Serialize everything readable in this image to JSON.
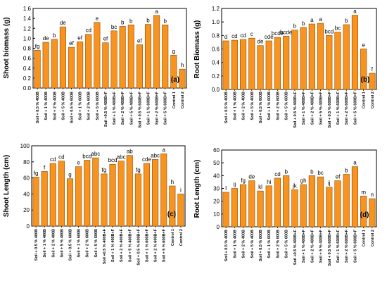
{
  "bar_color": "#f7931e",
  "bar_stroke": "#8a4b00",
  "chart_data": [
    {
      "panel_label": "(a)",
      "type": "bar",
      "ylabel": "Shoot biomass (g)",
      "ylim": [
        0,
        1.6
      ],
      "yticks": [
        "0.0",
        "0.2",
        "0.4",
        "0.6",
        "0.8",
        "1.0",
        "1.2",
        "1.4",
        "1.6"
      ],
      "categories": [
        "Soil + 0.5 % 400B",
        "Soil + 1 % 400B",
        "Soil + 2 % 400B",
        "Soil + 5 % 400B",
        "Soil + 0.5 % 600B",
        "Soil + 1 % 600B",
        "Soil + 2 % 600B",
        "Soil + 5 % 600B",
        "Soil +0.5 % 400B+F",
        "Soil + 1 % 400B+F",
        "Soil + 2 % 400B+F",
        "Soil + 5 % 400B+F",
        "Soil + 0.5 % 600B+F",
        "Soil + 1 % 600B+F",
        "Soil + 2 % 600B+F",
        "Soil + 5 % 600B+F",
        "Control 1",
        "Control 2"
      ],
      "values": [
        0.76,
        0.92,
        0.98,
        1.23,
        0.82,
        0.93,
        1.08,
        1.32,
        0.91,
        1.15,
        1.24,
        1.27,
        0.87,
        1.28,
        1.46,
        1.27,
        0.66,
        0.38
      ],
      "letters": [
        "fg",
        "de",
        "b",
        "de",
        "ef",
        "ef",
        "cd",
        "e",
        "ef",
        "bc",
        "b",
        "b",
        "ef",
        "b",
        "a",
        "b",
        "g",
        "h"
      ]
    },
    {
      "panel_label": "(b)",
      "type": "bar",
      "ylabel": "Root Biomass (g)",
      "ylim": [
        0,
        1.2
      ],
      "yticks": [
        "0.0",
        "0.2",
        "0.4",
        "0.6",
        "0.8",
        "1.0",
        "1.2"
      ],
      "categories": [
        "Soil + 0.5 % 400B",
        "Soil + 1 % 400B",
        "Soil + 2 % 400B",
        "Soil + 5 % 400B",
        "Soil + 0.5 % 600B",
        "Soil + 1 % 600B",
        "Soil + 2 % 600B",
        "Soil + 5 % 600B",
        "Soil + 0.5 % 400B+F",
        "Soil + 1 % 400B+F",
        "Soil + 2 % 400B+F",
        "Soil + 5 % 400B+F",
        "Soil + 0.5 % 600B+F",
        "Soil + 1 % 600B+F",
        "Soil + 2 % 600B+F",
        "Soil + 5 % 600B+F",
        "Control 1",
        "Control 2"
      ],
      "values": [
        0.72,
        0.73,
        0.74,
        0.76,
        0.65,
        0.72,
        0.77,
        0.79,
        0.88,
        0.92,
        0.97,
        0.98,
        0.8,
        0.85,
        0.96,
        1.1,
        0.6,
        0.24
      ],
      "letters": [
        "d",
        "cd",
        "cd",
        "c",
        "de",
        "cde",
        "bcde",
        "bcde",
        "b",
        "b",
        "a",
        "a",
        "bcd",
        "bc",
        "b",
        "a",
        "e",
        "f"
      ]
    },
    {
      "panel_label": "(c)",
      "type": "bar",
      "ylabel": "Shoot Length (cm)",
      "ylim": [
        0,
        100
      ],
      "yticks": [
        "0",
        "20",
        "40",
        "60",
        "80",
        "100"
      ],
      "categories": [
        "Soil + 0.5 % 400B",
        "Soil + 1 % 400B",
        "Soil + 2 % 400B",
        "Soil + 5 % 400B",
        "Soil + 0.5 % 600B",
        "Soil + 1 % 600B",
        "Soil + 2 % 600B",
        "Soil + 5 % 600B",
        "Soil +0.5 % 400B+F",
        "Soil + 1 % 400B+F",
        "Soil + 2 % 400B+F",
        "Soil + 5 % 400B+F",
        "Soil + 0.5 % 600B+F",
        "Soil + 1 % 600B+F",
        "Soil + 2 % 600B+F",
        "Soil + 5 % 600B+F",
        "Control 1",
        "Control 2"
      ],
      "values": [
        61,
        68,
        78,
        81,
        59,
        74,
        82,
        85,
        65,
        77,
        81,
        88,
        65,
        78,
        83,
        90,
        50,
        40
      ],
      "letters": [
        "fg",
        "f",
        "cd",
        "cd",
        "g",
        "e",
        "bcd",
        "abc",
        "fg",
        "bcd",
        "abc",
        "ab",
        "fg",
        "cde",
        "abc",
        "a",
        "h",
        "i"
      ]
    },
    {
      "panel_label": "(d)",
      "type": "bar",
      "ylabel": "Root Length (cm)",
      "ylim": [
        0,
        60
      ],
      "yticks": [
        "0",
        "10",
        "20",
        "30",
        "40",
        "50",
        "60"
      ],
      "categories": [
        "Soil + 0.5 % 400B",
        "Soil + 1 % 400B",
        "Soil + 2 % 400B",
        "Soil + 5 % 400B",
        "Soil + 0.5 % 600B",
        "Soil + 1 % 600B",
        "Soil + 2 % 600B",
        "Soil + 5 % 600B",
        "Soil +0.5 % 400B+F",
        "Soil + 1 % 400B+F",
        "Soil + 2 % 400B+F",
        "Soil + 5 % 400B+F",
        "Soil + 0.5 % 600B+F",
        "Soil + 1 % 600B+F",
        "Soil + 2 % 600B+F",
        "Soil + 5 % 600B+F",
        "Control 1",
        "Control 2"
      ],
      "values": [
        27,
        30,
        33,
        36,
        28,
        32,
        38,
        40,
        29,
        33,
        40,
        39,
        31,
        36,
        41,
        47,
        24,
        22
      ],
      "letters": [
        "l",
        "ij",
        "fg",
        "de",
        "kl",
        "hi",
        "cd",
        "b",
        "jk",
        "gh",
        "b",
        "bc",
        "ij",
        "ef",
        "b",
        "a",
        "m",
        "n"
      ]
    }
  ]
}
